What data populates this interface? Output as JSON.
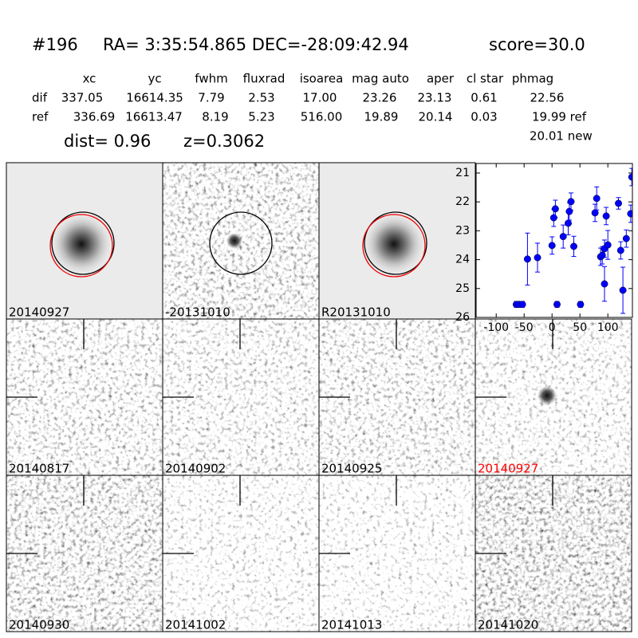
{
  "header": {
    "id": "#196",
    "coords": "RA= 3:35:54.865 DEC=-28:09:42.94",
    "score": "score=30.0"
  },
  "table": {
    "columns": [
      "xc",
      "yc",
      "fwhm",
      "fluxrad",
      "isoarea",
      "mag auto",
      "aper",
      "cl star",
      "phmag"
    ],
    "rows": [
      [
        "dif",
        "337.05",
        "16614.35",
        "7.79",
        "2.53",
        "17.00",
        "23.26",
        "23.13",
        "0.61",
        "22.56"
      ],
      [
        "ref",
        "336.69",
        "16613.47",
        "8.19",
        "5.23",
        "516.00",
        "19.89",
        "20.14",
        "0.03",
        "19.99 ref"
      ]
    ],
    "dist": "dist=  0.96",
    "z": "z=0.3062",
    "new": "20.01 new"
  },
  "stamps": [
    {
      "label": "20140927",
      "color": "#000000"
    },
    {
      "label": "-20131010",
      "color": "#000000"
    },
    {
      "label": "R20131010",
      "color": "#000000"
    },
    {
      "label": "20140817",
      "color": "#000000"
    },
    {
      "label": "20140902",
      "color": "#000000"
    },
    {
      "label": "20140925",
      "color": "#000000"
    },
    {
      "label": "20140927",
      "color": "#ff0000"
    },
    {
      "label": "20140930",
      "color": "#000000"
    },
    {
      "label": "20141002",
      "color": "#000000"
    },
    {
      "label": "20141013",
      "color": "#000000"
    },
    {
      "label": "20141020",
      "color": "#000000"
    }
  ],
  "chart_data": {
    "type": "scatter",
    "color": "#0000ff",
    "x": [
      -64,
      -59,
      -53,
      -44,
      -26,
      0,
      3,
      6,
      9,
      20,
      29,
      31,
      34,
      39,
      51,
      77,
      80,
      87,
      90,
      94,
      94,
      97,
      100,
      119,
      123,
      127,
      133,
      141,
      143
    ],
    "values": [
      25.55,
      25.55,
      25.55,
      23.98,
      23.93,
      23.51,
      22.55,
      22.24,
      25.55,
      23.2,
      22.74,
      22.33,
      21.99,
      23.54,
      25.55,
      22.38,
      21.88,
      23.9,
      23.85,
      24.84,
      23.62,
      22.49,
      23.49,
      22.05,
      23.68,
      25.06,
      23.27,
      22.41,
      21.14
    ],
    "errors": [
      0.1,
      0.1,
      0.1,
      0.9,
      0.5,
      0.3,
      0.3,
      0.3,
      0.1,
      0.4,
      0.4,
      0.3,
      0.3,
      0.35,
      0.1,
      0.3,
      0.4,
      0.3,
      0.3,
      0.6,
      0.3,
      0.3,
      0.5,
      0.2,
      0.3,
      0.8,
      0.3,
      0.3,
      0.3
    ],
    "xlim": [
      -136,
      144
    ],
    "ylim": [
      20.67,
      26
    ],
    "invert_y": true,
    "xticks": [
      -100,
      -50,
      0,
      50,
      100
    ],
    "yticks": [
      21,
      22,
      23,
      24,
      25,
      26
    ]
  }
}
